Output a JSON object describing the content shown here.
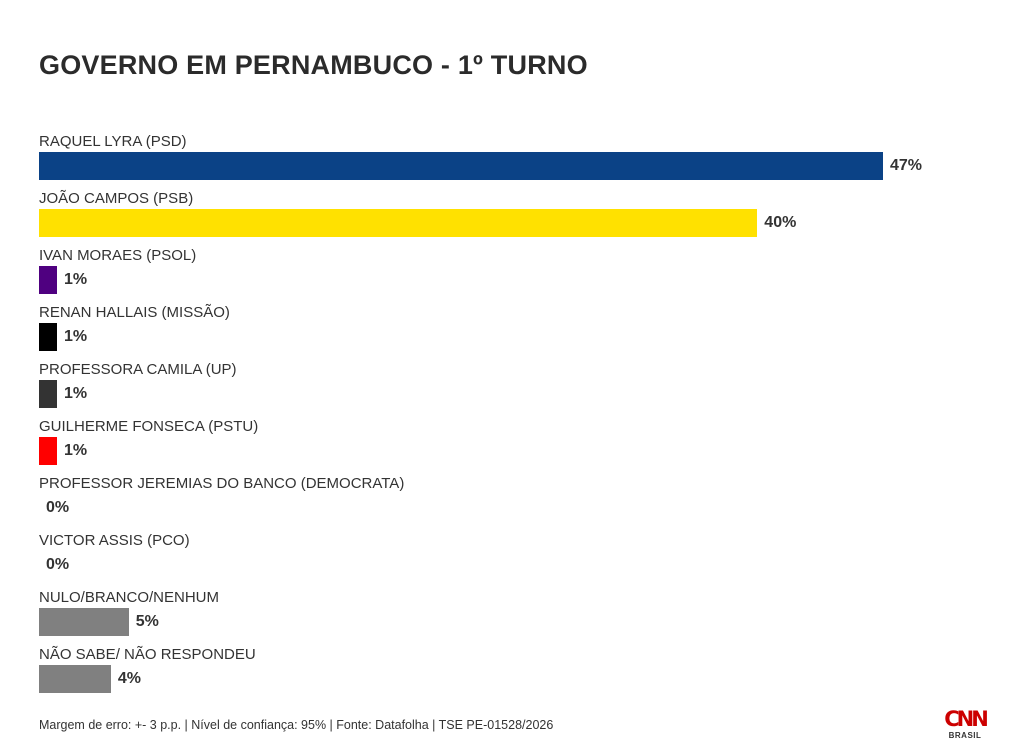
{
  "header": {
    "title": "GOVERNO EM PERNAMBUCO - 1º TURNO"
  },
  "chart_data": {
    "type": "bar",
    "orientation": "horizontal",
    "title": "GOVERNO EM PERNAMBUCO - 1º TURNO",
    "xlim": [
      0,
      47
    ],
    "grid": false,
    "categories": [
      "RAQUEL LYRA (PSD)",
      "JOÃO CAMPOS (PSB)",
      "IVAN MORAES (PSOL)",
      "RENAN HALLAIS (MISSÃO)",
      "PROFESSORA CAMILA (UP)",
      "GUILHERME FONSECA (PSTU)",
      "PROFESSOR JEREMIAS DO BANCO (DEMOCRATA)",
      "VICTOR ASSIS (PCO)",
      "NULO/BRANCO/NENHUM",
      "NÃO SABE/ NÃO RESPONDEU"
    ],
    "values": [
      47,
      40,
      1,
      1,
      1,
      1,
      0,
      0,
      5,
      4
    ],
    "value_labels": [
      "47%",
      "40%",
      "1%",
      "1%",
      "1%",
      "1%",
      "0%",
      "0%",
      "5%",
      "4%"
    ],
    "colors": [
      "#0b4286",
      "#ffe100",
      "#4f0080",
      "#000000",
      "#333333",
      "#ff0000",
      "#333333",
      "#333333",
      "#808080",
      "#808080"
    ]
  },
  "footer": {
    "note": "Margem de erro: +- 3 p.p. | Nível de confiança: 95% | Fonte: Datafolha | TSE PE-01528/2026"
  },
  "logo": {
    "mark": "CNN",
    "sub": "BRASIL"
  }
}
